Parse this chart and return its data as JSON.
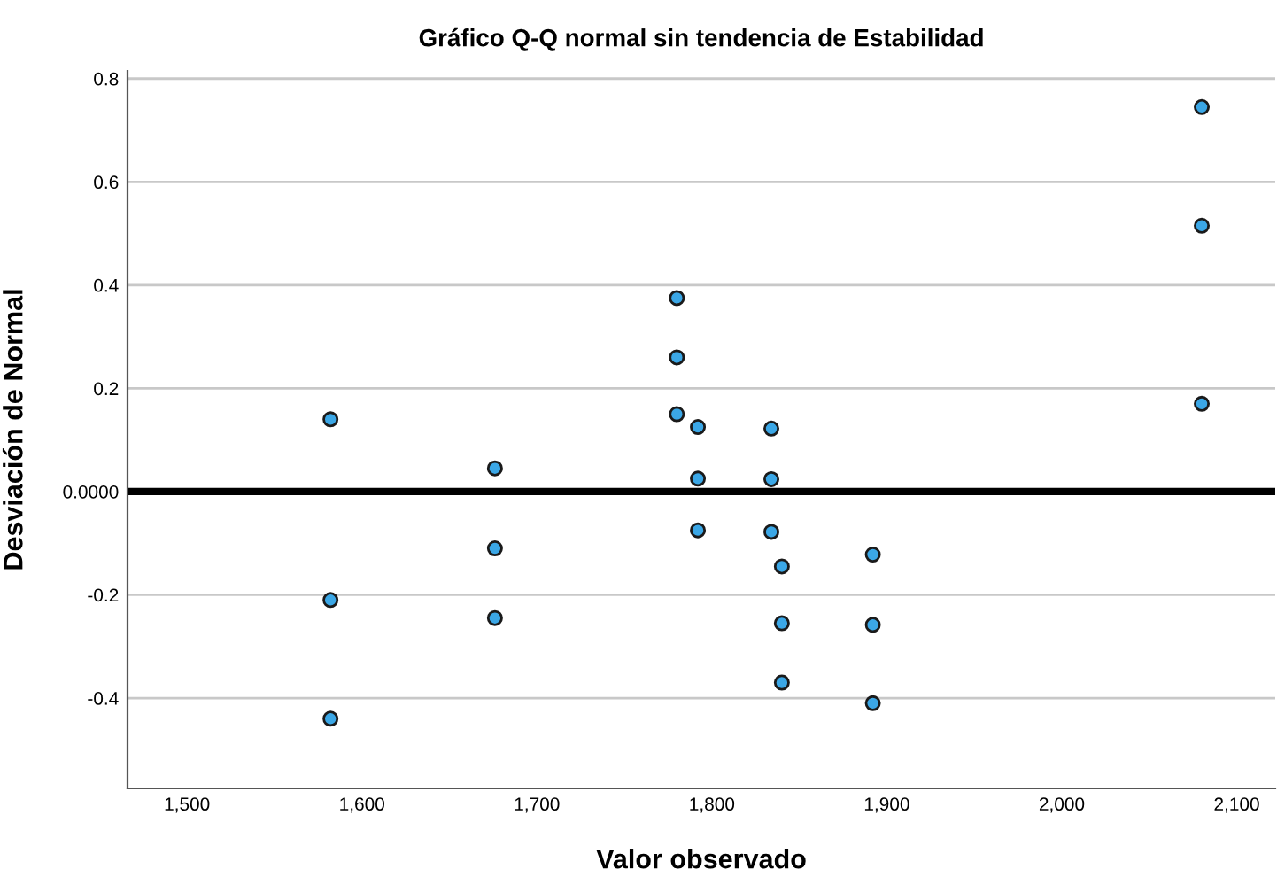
{
  "chart_data": {
    "type": "scatter",
    "title": "Gráfico Q-Q normal sin tendencia de Estabilidad",
    "xlabel": "Valor observado",
    "ylabel": "Desviación de Normal",
    "series": [
      {
        "color": "#3ba7e6",
        "x": [
          1582,
          1582,
          1582,
          1676,
          1676,
          1676,
          1780,
          1780,
          1780,
          1792,
          1792,
          1792,
          1834,
          1834,
          1834,
          1840,
          1840,
          1840,
          1892,
          1892,
          1892,
          2080,
          2080,
          2080
        ],
        "values": [
          0.14,
          -0.21,
          -0.44,
          0.045,
          -0.11,
          -0.245,
          0.375,
          0.26,
          0.15,
          0.125,
          0.025,
          -0.075,
          0.122,
          0.024,
          -0.078,
          -0.145,
          -0.255,
          -0.37,
          -0.122,
          -0.258,
          -0.41,
          0.745,
          0.515,
          0.17
        ]
      }
    ],
    "xlim": [
      1466,
      2122
    ],
    "ylim": [
      -0.575,
      0.815
    ],
    "xticks": [
      {
        "value": 1500,
        "label": "1,500"
      },
      {
        "value": 1600,
        "label": "1,600"
      },
      {
        "value": 1700,
        "label": "1,700"
      },
      {
        "value": 1800,
        "label": "1,800"
      },
      {
        "value": 1900,
        "label": "1,900"
      },
      {
        "value": 2000,
        "label": "2,000"
      },
      {
        "value": 2100,
        "label": "2,100"
      }
    ],
    "yticks": [
      -0.4,
      -0.2,
      {
        "value": 0,
        "label": "0.0000"
      },
      0.2,
      0.4,
      0.6,
      0.8
    ],
    "ref_lines": [
      {
        "axis": "y",
        "value": 0,
        "color": "#000000",
        "line_style": "solid"
      }
    ],
    "grid": "y",
    "marker": "circle"
  }
}
